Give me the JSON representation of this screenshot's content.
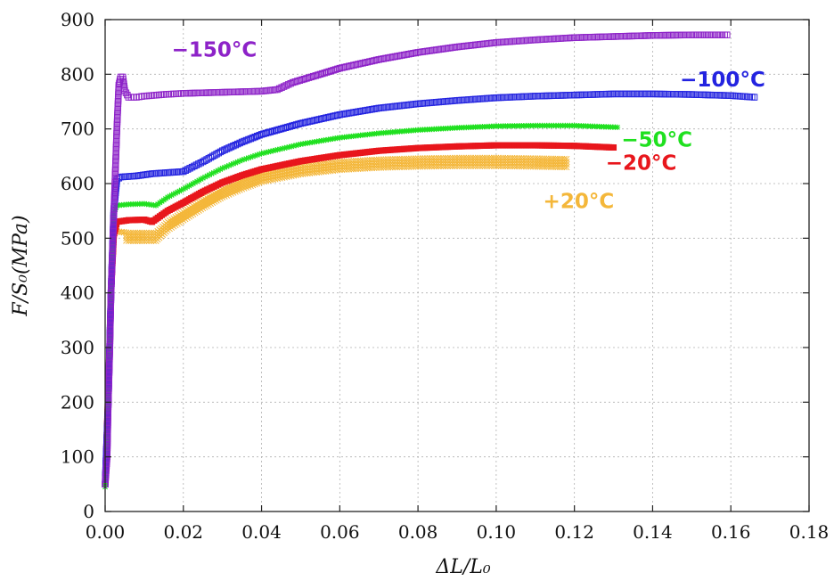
{
  "chart_data": {
    "type": "scatter",
    "xlabel": "ΔL/L₀",
    "ylabel": "F/S₀(MPa)",
    "xlim": [
      0,
      0.18
    ],
    "ylim": [
      0,
      900
    ],
    "xticks": [
      "0.00",
      "0.02",
      "0.04",
      "0.06",
      "0.08",
      "0.10",
      "0.12",
      "0.14",
      "0.16",
      "0.18"
    ],
    "yticks": [
      "0",
      "100",
      "200",
      "300",
      "400",
      "500",
      "600",
      "700",
      "800",
      "900"
    ],
    "grid": true,
    "series": [
      {
        "name": "+20°C",
        "color": "#f4b73a",
        "marker": "x-cross",
        "label_at": [
          0.112,
          555
        ],
        "band": [
          0,
          -5,
          -10,
          -15
        ],
        "points": [
          [
            0,
            50
          ],
          [
            0.0008,
            200
          ],
          [
            0.0015,
            400
          ],
          [
            0.0022,
            510
          ],
          [
            0.003,
            512
          ],
          [
            0.006,
            510
          ],
          [
            0.01,
            510
          ],
          [
            0.013,
            510
          ],
          [
            0.016,
            530
          ],
          [
            0.02,
            548
          ],
          [
            0.025,
            570
          ],
          [
            0.03,
            590
          ],
          [
            0.035,
            605
          ],
          [
            0.04,
            618
          ],
          [
            0.05,
            632
          ],
          [
            0.06,
            640
          ],
          [
            0.07,
            644
          ],
          [
            0.08,
            646
          ],
          [
            0.09,
            647
          ],
          [
            0.1,
            647
          ],
          [
            0.11,
            646
          ],
          [
            0.118,
            645
          ]
        ]
      },
      {
        "name": "−20°C",
        "color": "#e8161c",
        "marker": "filled-square",
        "label_at": [
          0.128,
          625
        ],
        "band": [
          0
        ],
        "points": [
          [
            0,
            50
          ],
          [
            0.0008,
            220
          ],
          [
            0.0015,
            400
          ],
          [
            0.0022,
            505
          ],
          [
            0.003,
            530
          ],
          [
            0.006,
            533
          ],
          [
            0.01,
            534
          ],
          [
            0.012,
            530
          ],
          [
            0.013,
            535
          ],
          [
            0.016,
            550
          ],
          [
            0.02,
            565
          ],
          [
            0.025,
            585
          ],
          [
            0.03,
            602
          ],
          [
            0.035,
            615
          ],
          [
            0.04,
            626
          ],
          [
            0.05,
            641
          ],
          [
            0.06,
            652
          ],
          [
            0.07,
            660
          ],
          [
            0.08,
            665
          ],
          [
            0.09,
            668
          ],
          [
            0.1,
            670
          ],
          [
            0.11,
            670
          ],
          [
            0.12,
            669
          ],
          [
            0.13,
            666
          ]
        ]
      },
      {
        "name": "−50°C",
        "color": "#1fe01f",
        "marker": "star",
        "label_at": [
          0.132,
          668
        ],
        "band": [
          0
        ],
        "points": [
          [
            0,
            45
          ],
          [
            0.0008,
            200
          ],
          [
            0.0015,
            400
          ],
          [
            0.0022,
            545
          ],
          [
            0.003,
            560
          ],
          [
            0.006,
            562
          ],
          [
            0.01,
            563
          ],
          [
            0.013,
            560
          ],
          [
            0.016,
            575
          ],
          [
            0.02,
            590
          ],
          [
            0.025,
            610
          ],
          [
            0.03,
            628
          ],
          [
            0.035,
            643
          ],
          [
            0.04,
            655
          ],
          [
            0.05,
            672
          ],
          [
            0.06,
            684
          ],
          [
            0.07,
            692
          ],
          [
            0.08,
            698
          ],
          [
            0.09,
            702
          ],
          [
            0.1,
            705
          ],
          [
            0.11,
            706
          ],
          [
            0.12,
            706
          ],
          [
            0.131,
            703
          ]
        ]
      },
      {
        "name": "−100°C",
        "color": "#2323e0",
        "marker": "open-square",
        "label_at": [
          0.147,
          778
        ],
        "band": [
          0
        ],
        "points": [
          [
            0,
            50
          ],
          [
            0.0008,
            200
          ],
          [
            0.0015,
            400
          ],
          [
            0.0022,
            550
          ],
          [
            0.003,
            608
          ],
          [
            0.004,
            612
          ],
          [
            0.008,
            614
          ],
          [
            0.012,
            618
          ],
          [
            0.016,
            620
          ],
          [
            0.02,
            622
          ],
          [
            0.025,
            640
          ],
          [
            0.03,
            660
          ],
          [
            0.035,
            676
          ],
          [
            0.04,
            690
          ],
          [
            0.05,
            710
          ],
          [
            0.06,
            726
          ],
          [
            0.07,
            738
          ],
          [
            0.08,
            746
          ],
          [
            0.09,
            752
          ],
          [
            0.1,
            757
          ],
          [
            0.11,
            760
          ],
          [
            0.12,
            762
          ],
          [
            0.13,
            764
          ],
          [
            0.14,
            764
          ],
          [
            0.15,
            763
          ],
          [
            0.16,
            761
          ],
          [
            0.166,
            758
          ]
        ]
      },
      {
        "name": "−150°C",
        "color": "#8d22c8",
        "marker": "open-square",
        "label_at": [
          0.017,
          832
        ],
        "band": [
          0
        ],
        "points": [
          [
            0,
            50
          ],
          [
            0.0005,
            100
          ],
          [
            0.0008,
            200
          ],
          [
            0.0012,
            300
          ],
          [
            0.0015,
            400
          ],
          [
            0.002,
            500
          ],
          [
            0.0025,
            600
          ],
          [
            0.003,
            700
          ],
          [
            0.0035,
            780
          ],
          [
            0.004,
            795
          ],
          [
            0.0045,
            795
          ],
          [
            0.005,
            770
          ],
          [
            0.006,
            758
          ],
          [
            0.008,
            758
          ],
          [
            0.01,
            760
          ],
          [
            0.015,
            763
          ],
          [
            0.02,
            765
          ],
          [
            0.03,
            767
          ],
          [
            0.04,
            769
          ],
          [
            0.044,
            772
          ],
          [
            0.048,
            785
          ],
          [
            0.055,
            800
          ],
          [
            0.06,
            811
          ],
          [
            0.07,
            827
          ],
          [
            0.08,
            840
          ],
          [
            0.09,
            850
          ],
          [
            0.1,
            858
          ],
          [
            0.11,
            863
          ],
          [
            0.12,
            867
          ],
          [
            0.13,
            869
          ],
          [
            0.14,
            871
          ],
          [
            0.15,
            872
          ],
          [
            0.159,
            872
          ]
        ]
      }
    ]
  }
}
